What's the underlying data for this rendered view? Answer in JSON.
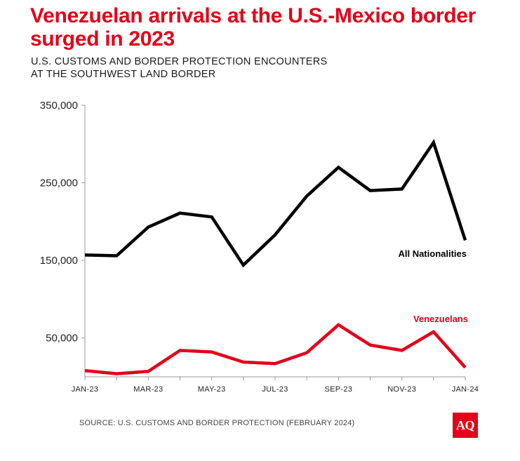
{
  "title": "Venezuelan arrivals at the U.S.-Mexico border surged in 2023",
  "subtitle_line1": "U.S. CUSTOMS AND BORDER PROTECTION ENCOUNTERS",
  "subtitle_line2": "AT THE SOUTHWEST LAND BORDER",
  "source": "SOURCE: U.S. CUSTOMS AND BORDER PROTECTION (FEBRUARY 2024)",
  "logo_text": "AQ",
  "colors": {
    "accent": "#e3001b",
    "all_nationalities": "#000000",
    "venezuelans": "#e3001b",
    "axis": "#999999",
    "tick_text": "#222222"
  },
  "chart_data": {
    "type": "line",
    "x": [
      "JAN-23",
      "FEB-23",
      "MAR-23",
      "APR-23",
      "MAY-23",
      "JUN-23",
      "JUL-23",
      "AUG-23",
      "SEP-23",
      "OCT-23",
      "NOV-23",
      "DEC-23",
      "JAN-24"
    ],
    "x_tick_labels": [
      "JAN-23",
      "MAR-23",
      "MAY-23",
      "JUL-23",
      "SEP-23",
      "NOV-23",
      "JAN-24"
    ],
    "y_ticks": [
      50000,
      150000,
      250000,
      350000
    ],
    "y_tick_labels": [
      "50,000",
      "150,000",
      "250,000",
      "350,000"
    ],
    "ylim": [
      0,
      350000
    ],
    "grid": false,
    "series": [
      {
        "name": "All Nationalities",
        "values": [
          157000,
          156000,
          193000,
          211000,
          206000,
          144000,
          183000,
          233000,
          270000,
          240000,
          242000,
          302000,
          176000
        ]
      },
      {
        "name": "Venezuelans",
        "values": [
          8000,
          4000,
          7000,
          34000,
          32000,
          19000,
          17000,
          31000,
          67000,
          41000,
          34000,
          58000,
          12000
        ]
      }
    ]
  }
}
